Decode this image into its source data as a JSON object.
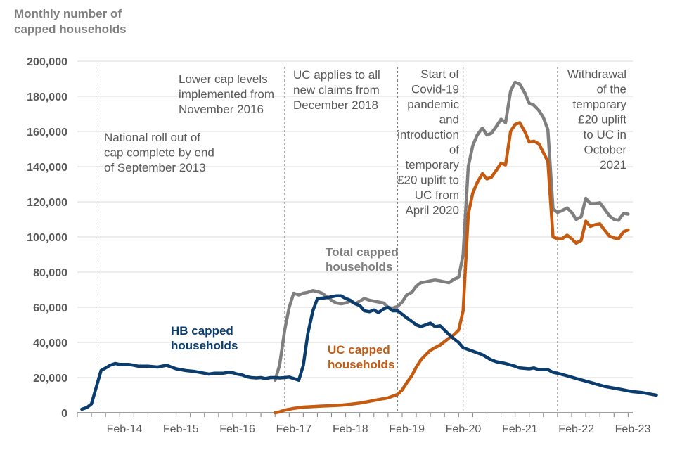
{
  "chart_data": {
    "type": "line",
    "title": "",
    "ylabel": "Monthly number of\ncapped households",
    "xlabel": "",
    "ylim": [
      0,
      200000
    ],
    "yticks": [
      0,
      20000,
      40000,
      60000,
      80000,
      100000,
      120000,
      140000,
      160000,
      180000,
      200000
    ],
    "ytick_labels": [
      "0",
      "20,000",
      "40,000",
      "60,000",
      "80,000",
      "100,000",
      "120,000",
      "140,000",
      "160,000",
      "180,000",
      "200,000"
    ],
    "x_unit": "year (fractional)",
    "xlim": [
      2013.25,
      2023.083
    ],
    "xticks": [
      {
        "label": "Feb-14",
        "x": 2014.083
      },
      {
        "label": "Feb-15",
        "x": 2015.083
      },
      {
        "label": "Feb-16",
        "x": 2016.083
      },
      {
        "label": "Feb-17",
        "x": 2017.083
      },
      {
        "label": "Feb-18",
        "x": 2018.083
      },
      {
        "label": "Feb-19",
        "x": 2019.083
      },
      {
        "label": "Feb-20",
        "x": 2020.083
      },
      {
        "label": "Feb-21",
        "x": 2021.083
      },
      {
        "label": "Feb-22",
        "x": 2022.083
      },
      {
        "label": "Feb-23",
        "x": 2023.083
      }
    ],
    "series": [
      {
        "name": "Total capped households",
        "color": "#7f7f7f",
        "points": [
          [
            2016.75,
            18500
          ],
          [
            2016.83,
            27000
          ],
          [
            2016.92,
            47000
          ],
          [
            2017.0,
            60000
          ],
          [
            2017.08,
            68000
          ],
          [
            2017.17,
            67000
          ],
          [
            2017.25,
            68000
          ],
          [
            2017.33,
            68500
          ],
          [
            2017.42,
            69500
          ],
          [
            2017.5,
            69000
          ],
          [
            2017.58,
            68000
          ],
          [
            2017.67,
            66000
          ],
          [
            2017.75,
            64000
          ],
          [
            2017.83,
            62500
          ],
          [
            2017.92,
            62000
          ],
          [
            2018.0,
            62500
          ],
          [
            2018.08,
            63500
          ],
          [
            2018.17,
            62000
          ],
          [
            2018.25,
            63500
          ],
          [
            2018.33,
            65000
          ],
          [
            2018.42,
            64000
          ],
          [
            2018.5,
            63500
          ],
          [
            2018.58,
            63000
          ],
          [
            2018.67,
            62500
          ],
          [
            2018.75,
            60000
          ],
          [
            2018.83,
            59500
          ],
          [
            2018.92,
            60500
          ],
          [
            2019.0,
            63000
          ],
          [
            2019.08,
            67000
          ],
          [
            2019.17,
            68500
          ],
          [
            2019.25,
            72000
          ],
          [
            2019.33,
            74000
          ],
          [
            2019.42,
            74500
          ],
          [
            2019.5,
            75000
          ],
          [
            2019.58,
            75500
          ],
          [
            2019.67,
            75000
          ],
          [
            2019.75,
            74500
          ],
          [
            2019.83,
            74000
          ],
          [
            2019.92,
            76000
          ],
          [
            2020.0,
            77000
          ],
          [
            2020.08,
            90000
          ],
          [
            2020.17,
            140000
          ],
          [
            2020.25,
            152000
          ],
          [
            2020.33,
            158000
          ],
          [
            2020.42,
            162000
          ],
          [
            2020.5,
            158000
          ],
          [
            2020.58,
            159000
          ],
          [
            2020.67,
            163000
          ],
          [
            2020.75,
            167000
          ],
          [
            2020.83,
            165000
          ],
          [
            2020.92,
            183000
          ],
          [
            2021.0,
            188000
          ],
          [
            2021.08,
            187000
          ],
          [
            2021.17,
            182000
          ],
          [
            2021.25,
            176000
          ],
          [
            2021.33,
            175000
          ],
          [
            2021.42,
            172000
          ],
          [
            2021.5,
            168000
          ],
          [
            2021.58,
            161000
          ],
          [
            2021.67,
            116000
          ],
          [
            2021.75,
            114000
          ],
          [
            2021.83,
            115000
          ],
          [
            2021.92,
            116500
          ],
          [
            2022.0,
            114000
          ],
          [
            2022.08,
            110000
          ],
          [
            2022.17,
            111500
          ],
          [
            2022.25,
            122000
          ],
          [
            2022.33,
            119000
          ],
          [
            2022.42,
            119000
          ],
          [
            2022.5,
            119500
          ],
          [
            2022.58,
            116000
          ],
          [
            2022.67,
            112000
          ],
          [
            2022.75,
            110000
          ],
          [
            2022.83,
            109500
          ],
          [
            2022.92,
            113500
          ],
          [
            2023.0,
            113000
          ]
        ]
      },
      {
        "name": "UC capped households",
        "color": "#c55a11",
        "points": [
          [
            2016.75,
            0
          ],
          [
            2016.83,
            500
          ],
          [
            2016.92,
            1500
          ],
          [
            2017.08,
            2500
          ],
          [
            2017.25,
            3200
          ],
          [
            2017.42,
            3500
          ],
          [
            2017.58,
            3800
          ],
          [
            2017.75,
            4000
          ],
          [
            2017.92,
            4300
          ],
          [
            2018.08,
            4800
          ],
          [
            2018.25,
            5500
          ],
          [
            2018.42,
            6500
          ],
          [
            2018.58,
            7500
          ],
          [
            2018.75,
            8500
          ],
          [
            2018.92,
            10500
          ],
          [
            2019.0,
            13000
          ],
          [
            2019.08,
            17000
          ],
          [
            2019.17,
            21000
          ],
          [
            2019.25,
            26000
          ],
          [
            2019.33,
            30000
          ],
          [
            2019.42,
            33000
          ],
          [
            2019.5,
            35500
          ],
          [
            2019.58,
            37000
          ],
          [
            2019.67,
            38500
          ],
          [
            2019.75,
            40500
          ],
          [
            2019.83,
            42500
          ],
          [
            2019.92,
            44500
          ],
          [
            2020.0,
            47000
          ],
          [
            2020.08,
            58000
          ],
          [
            2020.17,
            113000
          ],
          [
            2020.25,
            125000
          ],
          [
            2020.33,
            131000
          ],
          [
            2020.42,
            136000
          ],
          [
            2020.5,
            133000
          ],
          [
            2020.58,
            134000
          ],
          [
            2020.67,
            138000
          ],
          [
            2020.75,
            142000
          ],
          [
            2020.83,
            141000
          ],
          [
            2020.92,
            160000
          ],
          [
            2021.0,
            164000
          ],
          [
            2021.08,
            165000
          ],
          [
            2021.17,
            160000
          ],
          [
            2021.25,
            154000
          ],
          [
            2021.33,
            154500
          ],
          [
            2021.42,
            153000
          ],
          [
            2021.5,
            148000
          ],
          [
            2021.58,
            143000
          ],
          [
            2021.67,
            100000
          ],
          [
            2021.75,
            99000
          ],
          [
            2021.83,
            99000
          ],
          [
            2021.92,
            101000
          ],
          [
            2022.0,
            99000
          ],
          [
            2022.08,
            96500
          ],
          [
            2022.17,
            98000
          ],
          [
            2022.25,
            109000
          ],
          [
            2022.33,
            106000
          ],
          [
            2022.42,
            107000
          ],
          [
            2022.5,
            107500
          ],
          [
            2022.58,
            104000
          ],
          [
            2022.67,
            100500
          ],
          [
            2022.75,
            99500
          ],
          [
            2022.83,
            99000
          ],
          [
            2022.92,
            103000
          ],
          [
            2023.0,
            104000
          ]
        ]
      },
      {
        "name": "HB capped households",
        "color": "#0b3c6e",
        "points": [
          [
            2013.33,
            2000
          ],
          [
            2013.42,
            3000
          ],
          [
            2013.5,
            5000
          ],
          [
            2013.58,
            14000
          ],
          [
            2013.67,
            24000
          ],
          [
            2013.75,
            25500
          ],
          [
            2013.83,
            27000
          ],
          [
            2013.92,
            28000
          ],
          [
            2014.0,
            27500
          ],
          [
            2014.17,
            27500
          ],
          [
            2014.25,
            27000
          ],
          [
            2014.33,
            26500
          ],
          [
            2014.5,
            26500
          ],
          [
            2014.67,
            26000
          ],
          [
            2014.83,
            27000
          ],
          [
            2015.0,
            25000
          ],
          [
            2015.17,
            24000
          ],
          [
            2015.33,
            23500
          ],
          [
            2015.5,
            22500
          ],
          [
            2015.58,
            22000
          ],
          [
            2015.67,
            22500
          ],
          [
            2015.83,
            22500
          ],
          [
            2015.92,
            23000
          ],
          [
            2016.0,
            22800
          ],
          [
            2016.08,
            22000
          ],
          [
            2016.17,
            21500
          ],
          [
            2016.25,
            20500
          ],
          [
            2016.33,
            20000
          ],
          [
            2016.42,
            19800
          ],
          [
            2016.5,
            20000
          ],
          [
            2016.58,
            19500
          ],
          [
            2016.67,
            20000
          ],
          [
            2016.75,
            20000
          ],
          [
            2016.83,
            19800
          ],
          [
            2016.92,
            20000
          ],
          [
            2017.0,
            20300
          ],
          [
            2017.08,
            19500
          ],
          [
            2017.17,
            18500
          ],
          [
            2017.25,
            27000
          ],
          [
            2017.33,
            45000
          ],
          [
            2017.42,
            58000
          ],
          [
            2017.5,
            65000
          ],
          [
            2017.58,
            65200
          ],
          [
            2017.67,
            65500
          ],
          [
            2017.75,
            66000
          ],
          [
            2017.83,
            66500
          ],
          [
            2017.92,
            66500
          ],
          [
            2018.0,
            65000
          ],
          [
            2018.08,
            64000
          ],
          [
            2018.17,
            62000
          ],
          [
            2018.25,
            61000
          ],
          [
            2018.33,
            58000
          ],
          [
            2018.42,
            57500
          ],
          [
            2018.5,
            58500
          ],
          [
            2018.58,
            57000
          ],
          [
            2018.67,
            59000
          ],
          [
            2018.75,
            60000
          ],
          [
            2018.83,
            58000
          ],
          [
            2018.92,
            58000
          ],
          [
            2019.0,
            56000
          ],
          [
            2019.08,
            54000
          ],
          [
            2019.17,
            52000
          ],
          [
            2019.25,
            50000
          ],
          [
            2019.33,
            49000
          ],
          [
            2019.42,
            50000
          ],
          [
            2019.5,
            51000
          ],
          [
            2019.58,
            49000
          ],
          [
            2019.67,
            49500
          ],
          [
            2019.75,
            47000
          ],
          [
            2019.83,
            44500
          ],
          [
            2019.92,
            42000
          ],
          [
            2020.0,
            40000
          ],
          [
            2020.08,
            37000
          ],
          [
            2020.25,
            35000
          ],
          [
            2020.42,
            33000
          ],
          [
            2020.5,
            31500
          ],
          [
            2020.58,
            30000
          ],
          [
            2020.67,
            29000
          ],
          [
            2020.83,
            28000
          ],
          [
            2021.0,
            26500
          ],
          [
            2021.08,
            25500
          ],
          [
            2021.25,
            25000
          ],
          [
            2021.33,
            25500
          ],
          [
            2021.42,
            24500
          ],
          [
            2021.58,
            24500
          ],
          [
            2021.67,
            23000
          ],
          [
            2021.75,
            22500
          ],
          [
            2021.92,
            21000
          ],
          [
            2022.08,
            19500
          ],
          [
            2022.25,
            18000
          ],
          [
            2022.42,
            16500
          ],
          [
            2022.58,
            15000
          ],
          [
            2022.67,
            14500
          ],
          [
            2022.75,
            14000
          ],
          [
            2022.92,
            13000
          ],
          [
            2023.0,
            12500
          ],
          [
            2023.08,
            12000
          ],
          [
            2023.25,
            11500
          ],
          [
            2023.42,
            10500
          ],
          [
            2023.5,
            10000
          ]
        ]
      }
    ],
    "series_labels": [
      {
        "text": "Total capped households",
        "color": "#7f7f7f"
      },
      {
        "text": "UC capped households",
        "color": "#c55a11"
      },
      {
        "text": "HB capped households",
        "color": "#0b3c6e"
      }
    ],
    "annotations": [
      {
        "x": 2013.58,
        "lines": [
          "National roll out of",
          "cap complete by end",
          "of September 2013"
        ],
        "align": "left"
      },
      {
        "x": 2016.92,
        "lines": [
          "Lower cap levels",
          "implemented from",
          "November 2016"
        ],
        "align": "left"
      },
      {
        "x": 2018.92,
        "lines": [
          "UC applies to all",
          "new claims from",
          "December 2018"
        ],
        "align": "left"
      },
      {
        "x": 2020.08,
        "lines": [
          "Start of",
          "Covid-19",
          "pandemic",
          "and",
          "introduction",
          "of",
          "temporary",
          "£20 uplift to",
          "UC from",
          "April 2020"
        ],
        "align": "right"
      },
      {
        "x": 2021.75,
        "lines": [
          "Withdrawal",
          "of the",
          "temporary",
          "£20 uplift",
          "to UC in",
          "October",
          "2021"
        ],
        "align": "right"
      }
    ]
  }
}
